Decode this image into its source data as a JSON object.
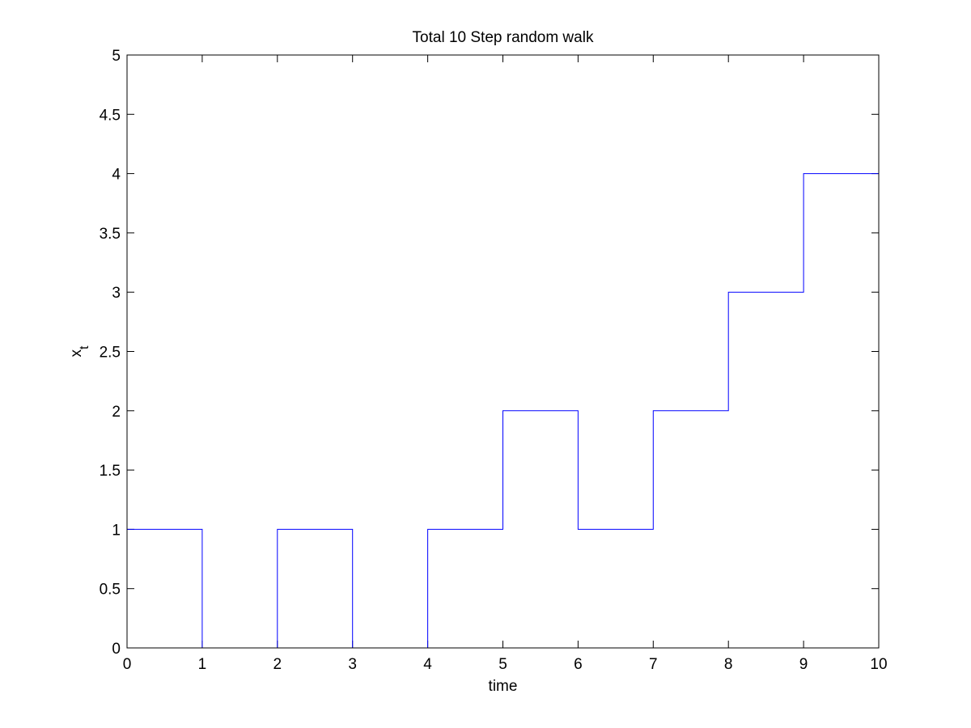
{
  "chart_data": {
    "type": "line",
    "title": "Total 10 Step random walk",
    "xlabel": "time",
    "ylabel": {
      "main": "x",
      "subscript": "t"
    },
    "xlim": [
      0,
      10
    ],
    "ylim": [
      0,
      5
    ],
    "xticks": [
      "0",
      "1",
      "2",
      "3",
      "4",
      "5",
      "6",
      "7",
      "8",
      "9",
      "10"
    ],
    "yticks": [
      "0",
      "0.5",
      "1",
      "1.5",
      "2",
      "2.5",
      "3",
      "3.5",
      "4",
      "4.5",
      "5"
    ],
    "grid": false,
    "legend": false,
    "step": "post",
    "series": [
      {
        "color": "#0000ff",
        "x": [
          0,
          1,
          2,
          3,
          4,
          5,
          6,
          7,
          8,
          9,
          10
        ],
        "y": [
          1,
          0,
          1,
          0,
          1,
          2,
          1,
          2,
          3,
          4,
          4
        ]
      }
    ]
  }
}
